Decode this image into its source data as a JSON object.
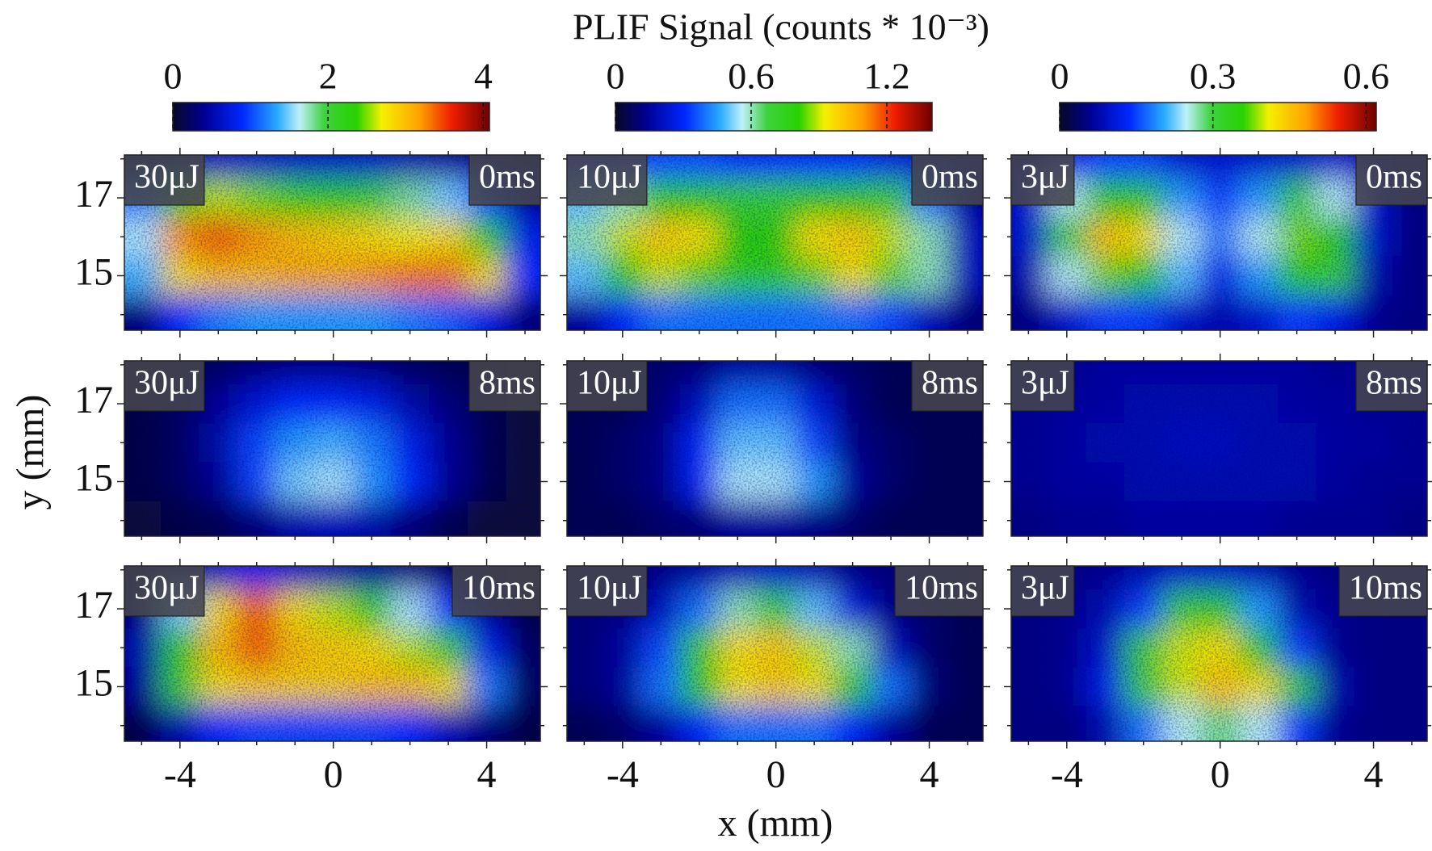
{
  "title": "PLIF Signal (counts * 10⁻³)",
  "xlabel": "x (mm)",
  "ylabel": "y (mm)",
  "chart_data": [
    {
      "type": "heatmap",
      "energy": "30μJ",
      "time": "0ms",
      "clim": [
        0,
        4.08
      ],
      "colorbar_ticks": [
        0,
        2,
        4
      ],
      "x": [
        -5,
        -4,
        -3,
        -2,
        -1,
        0,
        1,
        2,
        3,
        4,
        5
      ],
      "y": [
        18,
        17,
        16,
        15,
        14
      ],
      "z": [
        [
          0.2,
          0.4,
          0.6,
          0.6,
          0.6,
          0.6,
          0.6,
          0.5,
          0.4,
          0.3,
          0.2
        ],
        [
          1.2,
          2.2,
          2.6,
          2.5,
          2.4,
          2.3,
          2.0,
          1.8,
          1.5,
          1.0,
          0.4
        ],
        [
          1.6,
          3.2,
          3.4,
          3.2,
          3.0,
          2.9,
          2.8,
          2.7,
          2.8,
          2.3,
          0.8
        ],
        [
          1.4,
          2.8,
          3.0,
          3.0,
          3.1,
          3.1,
          3.2,
          3.3,
          3.3,
          2.8,
          0.9
        ],
        [
          0.3,
          0.9,
          1.2,
          1.3,
          1.3,
          1.3,
          1.3,
          1.2,
          1.1,
          0.8,
          0.3
        ]
      ],
      "xlim": [
        -5.45,
        5.4
      ],
      "ylim": [
        13.6,
        18.1
      ],
      "xticks": [
        -4,
        0,
        4
      ],
      "yticks": [
        15,
        17
      ],
      "xminor": [
        -5,
        -3,
        -2,
        -1,
        1,
        2,
        3,
        5
      ],
      "yminor": [
        14,
        16,
        18
      ]
    },
    {
      "type": "heatmap",
      "energy": "10μJ",
      "time": "0ms",
      "clim": [
        0,
        1.4
      ],
      "colorbar_ticks": [
        0,
        0.6,
        1.2
      ],
      "x": [
        -5,
        -4,
        -3,
        -2,
        -1,
        0,
        1,
        2,
        3,
        4,
        5
      ],
      "y": [
        18,
        17,
        16,
        15,
        14
      ],
      "z": [
        [
          0.3,
          0.3,
          0.35,
          0.35,
          0.3,
          0.3,
          0.3,
          0.3,
          0.25,
          0.2,
          0.15
        ],
        [
          0.5,
          0.6,
          0.8,
          0.8,
          0.7,
          0.7,
          0.8,
          0.8,
          0.7,
          0.4,
          0.15
        ],
        [
          0.6,
          0.9,
          1.0,
          0.95,
          0.8,
          0.8,
          0.95,
          1.0,
          0.9,
          0.6,
          0.2
        ],
        [
          0.5,
          0.8,
          0.9,
          0.85,
          0.75,
          0.75,
          0.85,
          0.95,
          0.85,
          0.6,
          0.2
        ],
        [
          0.15,
          0.3,
          0.4,
          0.4,
          0.4,
          0.4,
          0.4,
          0.4,
          0.35,
          0.2,
          0.1
        ]
      ],
      "xlim": [
        -5.45,
        5.4
      ],
      "ylim": [
        13.6,
        18.1
      ],
      "xticks": [
        -4,
        0,
        4
      ],
      "yticks": [
        15,
        17
      ],
      "xminor": [
        -5,
        -3,
        -2,
        -1,
        1,
        2,
        3,
        5
      ],
      "yminor": [
        14,
        16,
        18
      ]
    },
    {
      "type": "heatmap",
      "energy": "3μJ",
      "time": "0ms",
      "clim": [
        0,
        0.62
      ],
      "colorbar_ticks": [
        0,
        0.3,
        0.6
      ],
      "x": [
        -5,
        -4,
        -3,
        -2,
        -1,
        0,
        1,
        2,
        3,
        4,
        5
      ],
      "y": [
        18,
        17,
        16,
        15,
        14
      ],
      "z": [
        [
          0.08,
          0.12,
          0.15,
          0.15,
          0.1,
          0.1,
          0.1,
          0.1,
          0.1,
          0.08,
          0.05
        ],
        [
          0.1,
          0.25,
          0.35,
          0.35,
          0.2,
          0.15,
          0.2,
          0.3,
          0.25,
          0.1,
          0.05
        ],
        [
          0.1,
          0.3,
          0.45,
          0.42,
          0.25,
          0.18,
          0.25,
          0.38,
          0.35,
          0.1,
          0.05
        ],
        [
          0.08,
          0.25,
          0.38,
          0.36,
          0.22,
          0.12,
          0.2,
          0.35,
          0.3,
          0.08,
          0.05
        ],
        [
          0.05,
          0.1,
          0.15,
          0.15,
          0.1,
          0.08,
          0.1,
          0.15,
          0.12,
          0.06,
          0.05
        ]
      ],
      "xlim": [
        -5.45,
        5.4
      ],
      "ylim": [
        13.6,
        18.1
      ],
      "xticks": [
        -4,
        0,
        4
      ],
      "yticks": [
        15,
        17
      ],
      "xminor": [
        -5,
        -3,
        -2,
        -1,
        1,
        2,
        3,
        5
      ],
      "yminor": [
        14,
        16,
        18
      ]
    },
    {
      "type": "heatmap",
      "energy": "30μJ",
      "time": "8ms",
      "clim": [
        0,
        4.08
      ],
      "x": [
        -5,
        -4,
        -3,
        -2,
        -1,
        0,
        1,
        2,
        3,
        4,
        5
      ],
      "y": [
        18,
        17,
        16,
        15,
        14
      ],
      "z": [
        [
          0.1,
          0.15,
          0.2,
          0.3,
          0.35,
          0.35,
          0.3,
          0.2,
          0.15,
          0.1,
          0.05
        ],
        [
          0.1,
          0.2,
          0.4,
          0.7,
          0.9,
          0.9,
          0.8,
          0.5,
          0.3,
          0.15,
          0.05
        ],
        [
          0.1,
          0.2,
          0.5,
          1.0,
          1.3,
          1.4,
          1.2,
          0.8,
          0.4,
          0.15,
          0.05
        ],
        [
          0.1,
          0.2,
          0.4,
          1.0,
          1.5,
          1.6,
          1.3,
          0.9,
          0.4,
          0.15,
          0.05
        ],
        [
          0.05,
          0.1,
          0.15,
          0.3,
          0.5,
          0.6,
          0.5,
          0.3,
          0.15,
          0.05,
          0.05
        ]
      ],
      "xlim": [
        -5.45,
        5.4
      ],
      "ylim": [
        13.6,
        18.1
      ],
      "xticks": [
        -4,
        0,
        4
      ],
      "yticks": [
        15,
        17
      ],
      "xminor": [
        -5,
        -3,
        -2,
        -1,
        1,
        2,
        3,
        5
      ],
      "yminor": [
        14,
        16,
        18
      ]
    },
    {
      "type": "heatmap",
      "energy": "10μJ",
      "time": "8ms",
      "clim": [
        0,
        1.4
      ],
      "x": [
        -5,
        -4,
        -3,
        -2,
        -1,
        0,
        1,
        2,
        3,
        4,
        5
      ],
      "y": [
        18,
        17,
        16,
        15,
        14
      ],
      "z": [
        [
          0.05,
          0.05,
          0.08,
          0.1,
          0.15,
          0.15,
          0.1,
          0.08,
          0.05,
          0.05,
          0.05
        ],
        [
          0.05,
          0.05,
          0.1,
          0.2,
          0.4,
          0.4,
          0.25,
          0.1,
          0.05,
          0.05,
          0.05
        ],
        [
          0.05,
          0.08,
          0.12,
          0.3,
          0.5,
          0.5,
          0.35,
          0.12,
          0.08,
          0.05,
          0.05
        ],
        [
          0.05,
          0.08,
          0.12,
          0.3,
          0.55,
          0.55,
          0.45,
          0.15,
          0.08,
          0.05,
          0.05
        ],
        [
          0.05,
          0.05,
          0.08,
          0.1,
          0.15,
          0.15,
          0.12,
          0.08,
          0.05,
          0.05,
          0.05
        ]
      ],
      "xlim": [
        -5.45,
        5.4
      ],
      "ylim": [
        13.6,
        18.1
      ],
      "xticks": [
        -4,
        0,
        4
      ],
      "yticks": [
        15,
        17
      ],
      "xminor": [
        -5,
        -3,
        -2,
        -1,
        1,
        2,
        3,
        5
      ],
      "yminor": [
        14,
        16,
        18
      ]
    },
    {
      "type": "heatmap",
      "energy": "3μJ",
      "time": "8ms",
      "clim": [
        0,
        0.62
      ],
      "x": [
        -5,
        -4,
        -3,
        -2,
        -1,
        0,
        1,
        2,
        3,
        4,
        5
      ],
      "y": [
        18,
        17,
        16,
        15,
        14
      ],
      "z": [
        [
          0.06,
          0.06,
          0.07,
          0.07,
          0.07,
          0.07,
          0.07,
          0.07,
          0.06,
          0.06,
          0.06
        ],
        [
          0.06,
          0.07,
          0.07,
          0.08,
          0.08,
          0.08,
          0.08,
          0.07,
          0.07,
          0.06,
          0.06
        ],
        [
          0.06,
          0.07,
          0.08,
          0.08,
          0.09,
          0.09,
          0.08,
          0.08,
          0.07,
          0.07,
          0.06
        ],
        [
          0.06,
          0.07,
          0.07,
          0.08,
          0.08,
          0.08,
          0.08,
          0.08,
          0.07,
          0.06,
          0.06
        ],
        [
          0.05,
          0.06,
          0.06,
          0.07,
          0.07,
          0.07,
          0.07,
          0.06,
          0.06,
          0.06,
          0.05
        ]
      ],
      "xlim": [
        -5.45,
        5.4
      ],
      "ylim": [
        13.6,
        18.1
      ],
      "xticks": [
        -4,
        0,
        4
      ],
      "yticks": [
        15,
        17
      ],
      "xminor": [
        -5,
        -3,
        -2,
        -1,
        1,
        2,
        3,
        5
      ],
      "yminor": [
        14,
        16,
        18
      ]
    },
    {
      "type": "heatmap",
      "energy": "30μJ",
      "time": "10ms",
      "clim": [
        0,
        4.08
      ],
      "x": [
        -5,
        -4,
        -3,
        -2,
        -1,
        0,
        1,
        2,
        3,
        4,
        5
      ],
      "y": [
        18,
        17,
        16,
        15,
        14
      ],
      "z": [
        [
          0.1,
          0.3,
          0.6,
          0.8,
          0.6,
          0.5,
          0.4,
          0.3,
          0.2,
          0.1,
          0.05
        ],
        [
          0.3,
          1.5,
          2.8,
          3.4,
          2.8,
          2.6,
          2.2,
          1.6,
          0.9,
          0.4,
          0.1
        ],
        [
          0.5,
          2.2,
          3.0,
          3.4,
          3.0,
          2.9,
          2.8,
          2.6,
          2.0,
          0.8,
          0.2
        ],
        [
          0.4,
          2.0,
          2.8,
          2.9,
          2.9,
          2.9,
          3.0,
          3.0,
          2.8,
          1.2,
          0.2
        ],
        [
          0.1,
          0.5,
          0.9,
          1.0,
          1.0,
          1.0,
          1.0,
          0.9,
          0.6,
          0.3,
          0.1
        ]
      ],
      "xlim": [
        -5.45,
        5.4
      ],
      "ylim": [
        13.6,
        18.1
      ],
      "xticks": [
        -4,
        0,
        4
      ],
      "yticks": [
        15,
        17
      ],
      "xminor": [
        -5,
        -3,
        -2,
        -1,
        1,
        2,
        3,
        5
      ],
      "yminor": [
        14,
        16,
        18
      ]
    },
    {
      "type": "heatmap",
      "energy": "10μJ",
      "time": "10ms",
      "clim": [
        0,
        1.4
      ],
      "x": [
        -5,
        -4,
        -3,
        -2,
        -1,
        0,
        1,
        2,
        3,
        4,
        5
      ],
      "y": [
        18,
        17,
        16,
        15,
        14
      ],
      "z": [
        [
          0.1,
          0.1,
          0.12,
          0.15,
          0.2,
          0.22,
          0.18,
          0.12,
          0.1,
          0.08,
          0.05
        ],
        [
          0.1,
          0.12,
          0.2,
          0.4,
          0.6,
          0.7,
          0.5,
          0.25,
          0.12,
          0.08,
          0.05
        ],
        [
          0.1,
          0.15,
          0.35,
          0.7,
          0.95,
          1.0,
          0.9,
          0.6,
          0.2,
          0.08,
          0.05
        ],
        [
          0.1,
          0.15,
          0.4,
          0.8,
          0.95,
          1.0,
          0.95,
          0.75,
          0.4,
          0.1,
          0.05
        ],
        [
          0.05,
          0.08,
          0.15,
          0.3,
          0.4,
          0.4,
          0.4,
          0.3,
          0.15,
          0.05,
          0.05
        ]
      ],
      "xlim": [
        -5.45,
        5.4
      ],
      "ylim": [
        13.6,
        18.1
      ],
      "xticks": [
        -4,
        0,
        4
      ],
      "yticks": [
        15,
        17
      ],
      "xminor": [
        -5,
        -3,
        -2,
        -1,
        1,
        2,
        3,
        5
      ],
      "yminor": [
        14,
        16,
        18
      ]
    },
    {
      "type": "heatmap",
      "energy": "3μJ",
      "time": "10ms",
      "clim": [
        0,
        0.62
      ],
      "x": [
        -5,
        -4,
        -3,
        -2,
        -1,
        0,
        1,
        2,
        3,
        4,
        5
      ],
      "y": [
        18,
        17,
        16,
        15,
        14
      ],
      "z": [
        [
          0.05,
          0.05,
          0.06,
          0.08,
          0.1,
          0.1,
          0.08,
          0.06,
          0.05,
          0.05,
          0.05
        ],
        [
          0.05,
          0.06,
          0.08,
          0.15,
          0.3,
          0.35,
          0.2,
          0.08,
          0.06,
          0.05,
          0.05
        ],
        [
          0.05,
          0.06,
          0.1,
          0.3,
          0.4,
          0.42,
          0.35,
          0.15,
          0.06,
          0.05,
          0.05
        ],
        [
          0.05,
          0.06,
          0.12,
          0.3,
          0.4,
          0.45,
          0.42,
          0.3,
          0.08,
          0.05,
          0.05
        ],
        [
          0.05,
          0.05,
          0.08,
          0.18,
          0.25,
          0.28,
          0.25,
          0.15,
          0.06,
          0.05,
          0.05
        ]
      ],
      "xlim": [
        -5.45,
        5.4
      ],
      "ylim": [
        13.6,
        18.1
      ],
      "xticks": [
        -4,
        0,
        4
      ],
      "yticks": [
        15,
        17
      ],
      "xminor": [
        -5,
        -3,
        -2,
        -1,
        1,
        2,
        3,
        5
      ],
      "yminor": [
        14,
        16,
        18
      ]
    }
  ]
}
